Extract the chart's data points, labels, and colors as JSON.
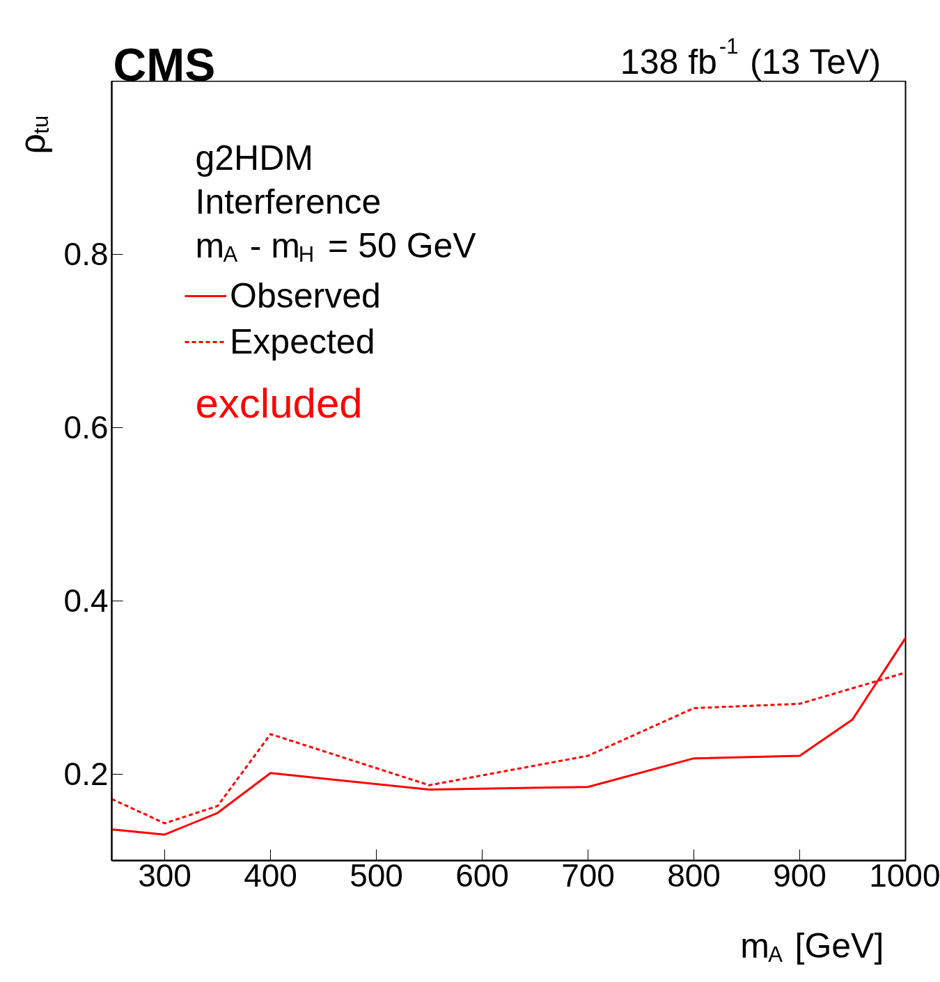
{
  "chart_data": {
    "type": "line",
    "title": "CMS",
    "subtitle": "138 fb$^{-1}$ (13 TeV)",
    "xlabel": "m$_{A}$ [GeV]",
    "ylabel": "ρ$_{tu}$",
    "annotations": [
      "g2HDM",
      "Interference",
      "m$_{A}$ - m$_{H}$ = 50 GeV",
      "excluded"
    ],
    "series": [
      {
        "name": "Observed",
        "color": "#ff0000",
        "line_style": "solid",
        "x": [
          250,
          300,
          350,
          400,
          550,
          700,
          800,
          900,
          950,
          1000
        ],
        "values": [
          0.136,
          0.13,
          0.155,
          0.201,
          0.182,
          0.185,
          0.218,
          0.221,
          0.263,
          0.357
        ]
      },
      {
        "name": "Expected",
        "color": "#ff0000",
        "line_style": "dashed",
        "x": [
          250,
          300,
          350,
          400,
          550,
          700,
          800,
          900,
          1000
        ],
        "values": [
          0.171,
          0.143,
          0.163,
          0.246,
          0.187,
          0.221,
          0.276,
          0.281,
          0.317
        ]
      }
    ],
    "xlim": [
      250,
      1000
    ],
    "ylim": [
      0.1,
      1.0
    ],
    "xticks": [
      300,
      400,
      500,
      600,
      700,
      800,
      900,
      1000
    ],
    "yticks": [
      0.2,
      0.4,
      0.6,
      0.8
    ],
    "legend": "top left",
    "grid": false,
    "marker": "none"
  }
}
